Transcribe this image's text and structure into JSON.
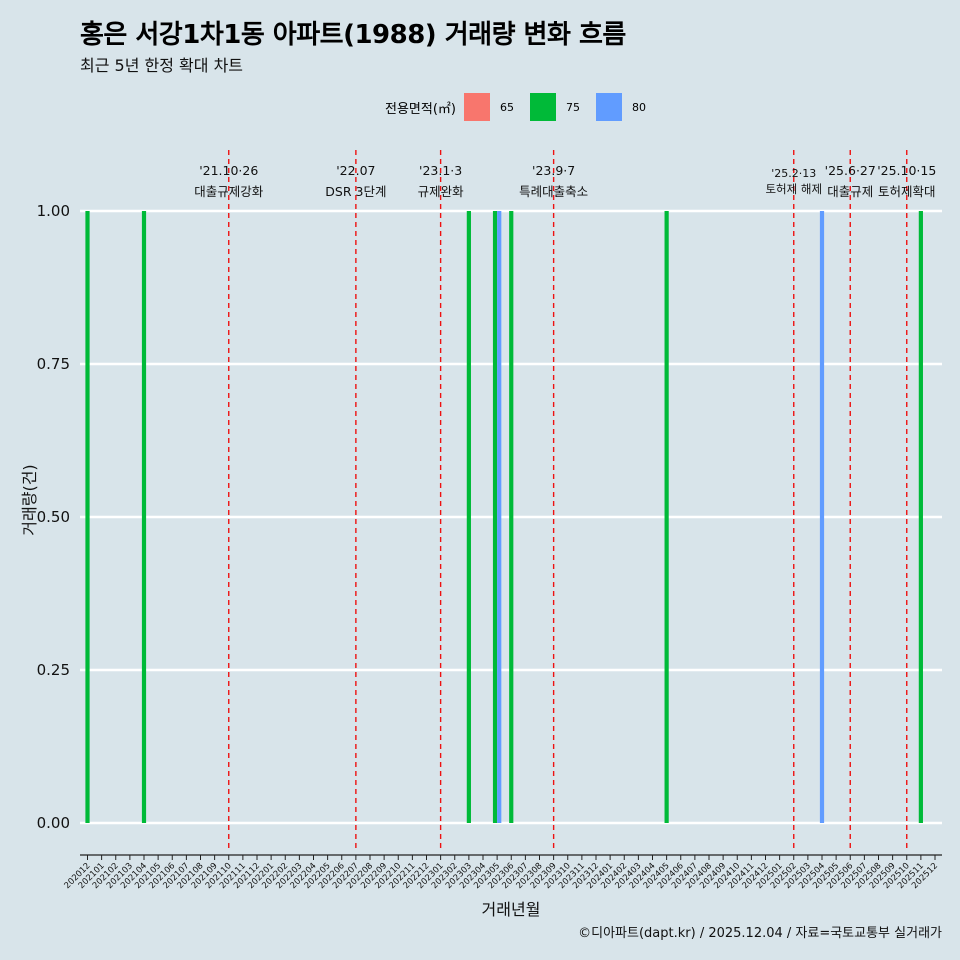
{
  "header": {
    "title": "홍은 서강1차1동 아파트(1988) 거래량 변화 흐름",
    "subtitle": "최근 5년 한정 확대 차트"
  },
  "legend": {
    "title": "전용면적(㎡)",
    "items": [
      {
        "label": "65",
        "color": "#f8766d"
      },
      {
        "label": "75",
        "color": "#00ba38"
      },
      {
        "label": "80",
        "color": "#619cff"
      }
    ]
  },
  "caption": "©디아파트(dapt.kr) / 2025.12.04 / 자료=국토교통부 실거래가",
  "chart_data": {
    "type": "bar",
    "title": "홍은 서강1차1동 아파트(1988) 거래량 변화 흐름",
    "xlabel": "거래년월",
    "ylabel": "거래량(건)",
    "ylim": [
      0,
      1
    ],
    "yticks": [
      "0.00",
      "0.25",
      "0.50",
      "0.75",
      "1.00"
    ],
    "categories": [
      "202012",
      "202101",
      "202102",
      "202103",
      "202104",
      "202105",
      "202106",
      "202107",
      "202108",
      "202109",
      "202110",
      "202111",
      "202112",
      "202201",
      "202202",
      "202203",
      "202204",
      "202205",
      "202206",
      "202207",
      "202208",
      "202209",
      "202210",
      "202211",
      "202212",
      "202301",
      "202302",
      "202303",
      "202304",
      "202305",
      "202306",
      "202307",
      "202308",
      "202309",
      "202310",
      "202311",
      "202312",
      "202401",
      "202402",
      "202403",
      "202404",
      "202405",
      "202406",
      "202407",
      "202408",
      "202409",
      "202410",
      "202411",
      "202412",
      "202501",
      "202502",
      "202503",
      "202504",
      "202505",
      "202506",
      "202507",
      "202508",
      "202509",
      "202510",
      "202511",
      "202512"
    ],
    "series": [
      {
        "name": "65",
        "color": "#f8766d",
        "points": []
      },
      {
        "name": "75",
        "color": "#00ba38",
        "points": [
          {
            "x": "202012",
            "value": 1
          },
          {
            "x": "202104",
            "value": 1
          },
          {
            "x": "202303",
            "value": 1
          },
          {
            "x": "202305",
            "value": 1
          },
          {
            "x": "202306",
            "value": 1
          },
          {
            "x": "202405",
            "value": 1
          },
          {
            "x": "202511",
            "value": 1
          }
        ]
      },
      {
        "name": "80",
        "color": "#619cff",
        "points": [
          {
            "x": "202305",
            "value": 1
          },
          {
            "x": "202504",
            "value": 1
          }
        ]
      }
    ],
    "events": [
      {
        "date": "'21.10·26",
        "label": "대출규제강화",
        "x": "202110"
      },
      {
        "date": "'22.07",
        "label": "DSR 3단계",
        "x": "202207"
      },
      {
        "date": "'23.1·3",
        "label": "규제완화",
        "x": "202301"
      },
      {
        "date": "'23.9·7",
        "label": "특례대출축소",
        "x": "202309"
      },
      {
        "date": "'25.2·13",
        "label": "토허제 해제",
        "x": "202502"
      },
      {
        "date": "'25.6·27",
        "label": "대출규제",
        "x": "202506"
      },
      {
        "date": "'25.10·15",
        "label": "토허제확대",
        "x": "202510"
      }
    ]
  }
}
